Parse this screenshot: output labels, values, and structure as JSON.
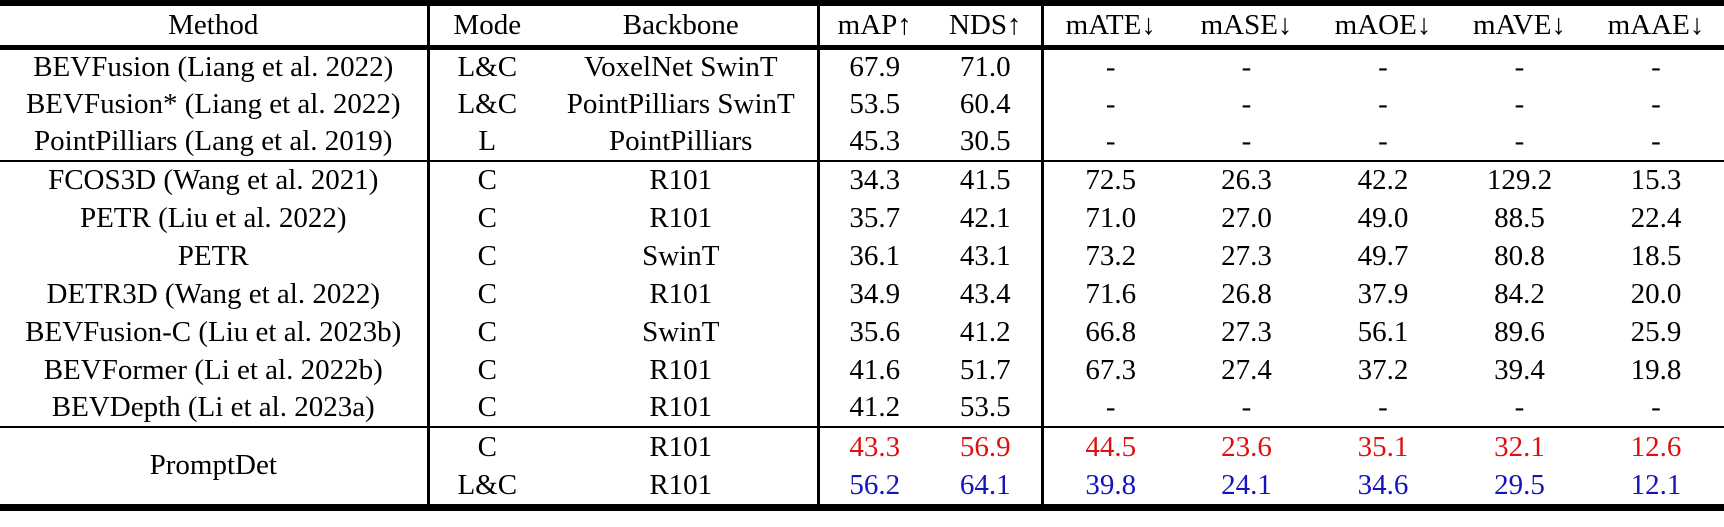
{
  "table": {
    "columns": [
      {
        "id": "method",
        "label": "Method"
      },
      {
        "id": "mode",
        "label": "Mode"
      },
      {
        "id": "backbone",
        "label": "Backbone"
      },
      {
        "id": "map",
        "label": "mAP↑"
      },
      {
        "id": "nds",
        "label": "NDS↑"
      },
      {
        "id": "mate",
        "label": "mATE↓"
      },
      {
        "id": "mase",
        "label": "mASE↓"
      },
      {
        "id": "maoe",
        "label": "mAOE↓"
      },
      {
        "id": "mave",
        "label": "mAVE↓"
      },
      {
        "id": "maae",
        "label": "mAAE↓"
      }
    ],
    "groups": [
      {
        "name": "lidar-and-fusion-baselines",
        "rows": [
          {
            "method": "BEVFusion (Liang et al. 2022)",
            "mode": "L&C",
            "backbone": "VoxelNet SwinT",
            "values": [
              "67.9",
              "71.0",
              "-",
              "-",
              "-",
              "-",
              "-"
            ]
          },
          {
            "method": "BEVFusion* (Liang et al. 2022)",
            "mode": "L&C",
            "backbone": "PointPilliars SwinT",
            "values": [
              "53.5",
              "60.4",
              "-",
              "-",
              "-",
              "-",
              "-"
            ]
          },
          {
            "method": "PointPilliars (Lang et al. 2019)",
            "mode": "L",
            "backbone": "PointPilliars",
            "values": [
              "45.3",
              "30.5",
              "-",
              "-",
              "-",
              "-",
              "-"
            ]
          }
        ]
      },
      {
        "name": "camera-baselines",
        "rows": [
          {
            "method": "FCOS3D (Wang et al. 2021)",
            "mode": "C",
            "backbone": "R101",
            "values": [
              "34.3",
              "41.5",
              "72.5",
              "26.3",
              "42.2",
              "129.2",
              "15.3"
            ]
          },
          {
            "method": "PETR (Liu et al. 2022)",
            "mode": "C",
            "backbone": "R101",
            "values": [
              "35.7",
              "42.1",
              "71.0",
              "27.0",
              "49.0",
              "88.5",
              "22.4"
            ]
          },
          {
            "method": "PETR",
            "mode": "C",
            "backbone": "SwinT",
            "values": [
              "36.1",
              "43.1",
              "73.2",
              "27.3",
              "49.7",
              "80.8",
              "18.5"
            ]
          },
          {
            "method": "DETR3D (Wang et al. 2022)",
            "mode": "C",
            "backbone": "R101",
            "values": [
              "34.9",
              "43.4",
              "71.6",
              "26.8",
              "37.9",
              "84.2",
              "20.0"
            ]
          },
          {
            "method": "BEVFusion-C (Liu et al. 2023b)",
            "mode": "C",
            "backbone": "SwinT",
            "values": [
              "35.6",
              "41.2",
              "66.8",
              "27.3",
              "56.1",
              "89.6",
              "25.9"
            ]
          },
          {
            "method": "BEVFormer (Li et al. 2022b)",
            "mode": "C",
            "backbone": "R101",
            "values": [
              "41.6",
              "51.7",
              "67.3",
              "27.4",
              "37.2",
              "39.4",
              "19.8"
            ]
          },
          {
            "method": "BEVDepth (Li et al. 2023a)",
            "mode": "C",
            "backbone": "R101",
            "values": [
              "41.2",
              "53.5",
              "-",
              "-",
              "-",
              "-",
              "-"
            ]
          }
        ]
      },
      {
        "name": "promptdet",
        "rows": [
          {
            "method": "PromptDet",
            "method_rowspan": 2,
            "mode": "C",
            "backbone": "R101",
            "values": [
              "43.3",
              "56.9",
              "44.5",
              "23.6",
              "35.1",
              "32.1",
              "12.6"
            ],
            "highlight": "camera_best"
          },
          {
            "method": null,
            "mode": "L&C",
            "backbone": "R101",
            "values": [
              "56.2",
              "64.1",
              "39.8",
              "24.1",
              "34.6",
              "29.5",
              "12.1"
            ],
            "highlight": "fusion_best"
          }
        ]
      }
    ]
  },
  "colors": {
    "camera_best": "#dd1111",
    "fusion_best": "#1414bd",
    "border": "#000000",
    "background": "#ffffff"
  }
}
